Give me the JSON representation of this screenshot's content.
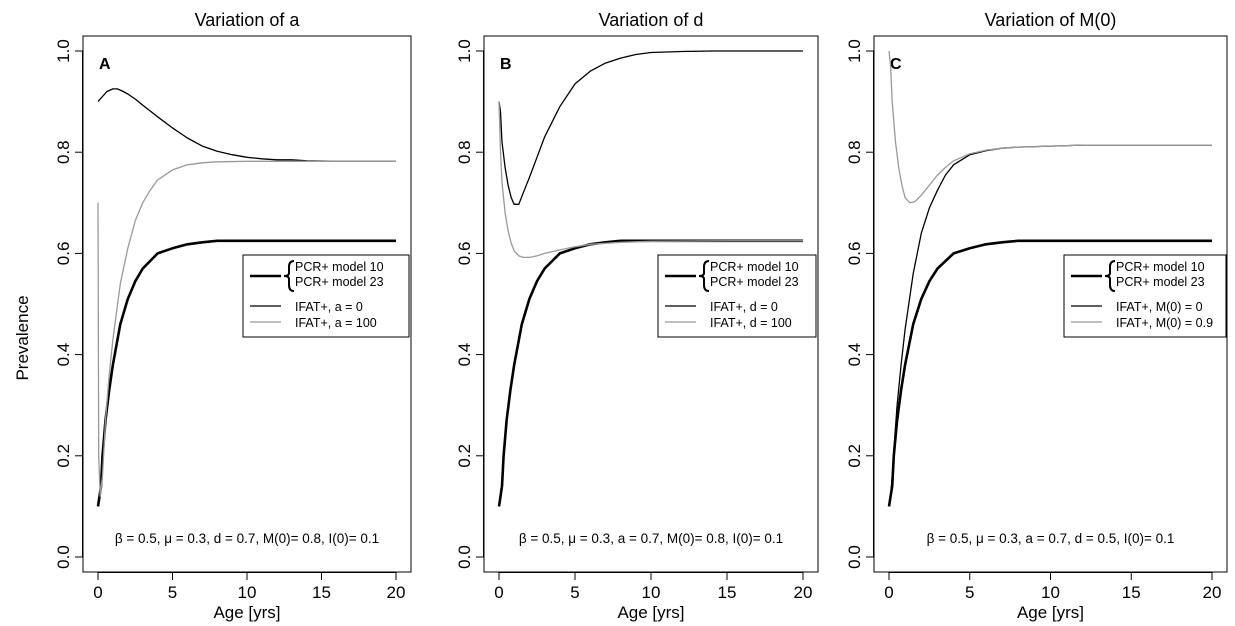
{
  "figure": {
    "ylabel": "Prevalence"
  },
  "chart_data": [
    {
      "type": "line",
      "title": "Variation of a",
      "panel_label": "A",
      "xlabel": "Age [yrs]",
      "ylabel": "Prevalence",
      "xlim": [
        0,
        20
      ],
      "ylim": [
        0,
        1
      ],
      "x_ticks": [
        "0",
        "5",
        "10",
        "15",
        "20"
      ],
      "y_ticks": [
        "0.0",
        "0.2",
        "0.4",
        "0.6",
        "0.8",
        "1.0"
      ],
      "grid": false,
      "legend_position": "right",
      "legend": {
        "brace_entries": [
          "PCR+ model 10",
          "PCR+ model 23"
        ],
        "entries": [
          {
            "label": "IFAT+, a = 0",
            "color": "#000000"
          },
          {
            "label": "IFAT+, a = 100",
            "color": "#999999"
          }
        ]
      },
      "annotation": "β = 0.5, μ = 0.3, d = 0.7, M(0)= 0.8, I(0)= 0.1",
      "series": [
        {
          "name": "PCR+ model 10",
          "color": "#000000",
          "width": "thick",
          "x": [
            0,
            0.1,
            0.2,
            0.3,
            0.5,
            0.75,
            1,
            1.5,
            2,
            2.5,
            3,
            3.5,
            4,
            5,
            6,
            7,
            8,
            10,
            12,
            15,
            20
          ],
          "y": [
            0.1,
            0.12,
            0.14,
            0.2,
            0.27,
            0.33,
            0.38,
            0.46,
            0.51,
            0.545,
            0.57,
            0.585,
            0.6,
            0.61,
            0.618,
            0.622,
            0.625,
            0.625,
            0.625,
            0.625,
            0.625
          ]
        },
        {
          "name": "IFAT+, a = 0",
          "color": "#000000",
          "width": "thin",
          "x": [
            0,
            0.3,
            0.6,
            1,
            1.3,
            1.7,
            2,
            2.5,
            3,
            4,
            5,
            6,
            7,
            8,
            9,
            10,
            11,
            12,
            13,
            14,
            16,
            18,
            20
          ],
          "y": [
            0.9,
            0.91,
            0.92,
            0.925,
            0.925,
            0.92,
            0.915,
            0.905,
            0.893,
            0.87,
            0.848,
            0.828,
            0.812,
            0.802,
            0.795,
            0.79,
            0.787,
            0.785,
            0.785,
            0.783,
            0.782,
            0.782,
            0.782
          ]
        },
        {
          "name": "IFAT+, a = 100",
          "color": "#999999",
          "width": "thin",
          "x": [
            0,
            0.05,
            0.15,
            0.3,
            0.5,
            0.75,
            1,
            1.5,
            2,
            2.5,
            3,
            3.5,
            4,
            5,
            6,
            7,
            8,
            10,
            12,
            15,
            20
          ],
          "y": [
            0.7,
            0.2,
            0.12,
            0.16,
            0.27,
            0.36,
            0.43,
            0.54,
            0.61,
            0.665,
            0.7,
            0.725,
            0.745,
            0.765,
            0.775,
            0.779,
            0.781,
            0.782,
            0.782,
            0.782,
            0.782
          ]
        }
      ]
    },
    {
      "type": "line",
      "title": "Variation of d",
      "panel_label": "B",
      "xlabel": "Age [yrs]",
      "ylabel": "",
      "xlim": [
        0,
        20
      ],
      "ylim": [
        0,
        1
      ],
      "x_ticks": [
        "0",
        "5",
        "10",
        "15",
        "20"
      ],
      "y_ticks": [
        "0.0",
        "0.2",
        "0.4",
        "0.6",
        "0.8",
        "1.0"
      ],
      "grid": false,
      "legend_position": "right",
      "legend": {
        "brace_entries": [
          "PCR+ model 10",
          "PCR+ model 23"
        ],
        "entries": [
          {
            "label": "IFAT+, d = 0",
            "color": "#000000"
          },
          {
            "label": "IFAT+, d = 100",
            "color": "#999999"
          }
        ]
      },
      "annotation": "β = 0.5, μ = 0.3, a = 0.7, M(0)= 0.8, I(0)= 0.1",
      "series": [
        {
          "name": "PCR+ model 10",
          "color": "#000000",
          "width": "thick",
          "x": [
            0,
            0.1,
            0.2,
            0.3,
            0.5,
            0.75,
            1,
            1.5,
            2,
            2.5,
            3,
            3.5,
            4,
            5,
            6,
            7,
            8,
            10,
            12,
            15,
            20
          ],
          "y": [
            0.1,
            0.12,
            0.14,
            0.2,
            0.27,
            0.33,
            0.38,
            0.46,
            0.51,
            0.545,
            0.57,
            0.585,
            0.6,
            0.61,
            0.618,
            0.622,
            0.625,
            0.625,
            0.625,
            0.625,
            0.625
          ]
        },
        {
          "name": "IFAT+, d = 0",
          "color": "#000000",
          "width": "thin",
          "x": [
            0,
            0.1,
            0.2,
            0.4,
            0.6,
            0.8,
            1,
            1.3,
            1.6,
            2,
            2.5,
            3,
            4,
            5,
            6,
            7,
            8,
            9,
            10,
            12,
            14,
            20
          ],
          "y": [
            0.9,
            0.88,
            0.82,
            0.77,
            0.735,
            0.71,
            0.697,
            0.697,
            0.72,
            0.75,
            0.79,
            0.83,
            0.89,
            0.935,
            0.96,
            0.976,
            0.986,
            0.993,
            0.997,
            0.999,
            1.0,
            1.0
          ]
        },
        {
          "name": "IFAT+, d = 100",
          "color": "#999999",
          "width": "thin",
          "x": [
            0,
            0.1,
            0.2,
            0.4,
            0.6,
            0.8,
            1,
            1.3,
            1.6,
            2,
            2.5,
            3,
            4,
            5,
            6,
            8,
            10,
            15,
            20
          ],
          "y": [
            0.9,
            0.8,
            0.74,
            0.68,
            0.645,
            0.62,
            0.605,
            0.595,
            0.592,
            0.592,
            0.595,
            0.6,
            0.607,
            0.613,
            0.618,
            0.622,
            0.624,
            0.625,
            0.625
          ]
        }
      ]
    },
    {
      "type": "line",
      "title": "Variation of M(0)",
      "panel_label": "C",
      "xlabel": "Age [yrs]",
      "ylabel": "",
      "xlim": [
        0,
        20
      ],
      "ylim": [
        0,
        1
      ],
      "x_ticks": [
        "0",
        "5",
        "10",
        "15",
        "20"
      ],
      "y_ticks": [
        "0.0",
        "0.2",
        "0.4",
        "0.6",
        "0.8",
        "1.0"
      ],
      "grid": false,
      "legend_position": "right",
      "legend": {
        "brace_entries": [
          "PCR+ model 10",
          "PCR+ model 23"
        ],
        "entries": [
          {
            "label": "IFAT+, M(0) = 0",
            "color": "#000000"
          },
          {
            "label": "IFAT+, M(0) = 0.9",
            "color": "#999999"
          }
        ]
      },
      "annotation": "β = 0.5, μ = 0.3, a = 0.7, d = 0.5, I(0)= 0.1",
      "series": [
        {
          "name": "PCR+ model 10",
          "color": "#000000",
          "width": "thick",
          "x": [
            0,
            0.1,
            0.2,
            0.3,
            0.5,
            0.75,
            1,
            1.5,
            2,
            2.5,
            3,
            3.5,
            4,
            5,
            6,
            7,
            8,
            10,
            12,
            15,
            20
          ],
          "y": [
            0.1,
            0.12,
            0.14,
            0.2,
            0.27,
            0.33,
            0.38,
            0.46,
            0.51,
            0.545,
            0.57,
            0.585,
            0.6,
            0.61,
            0.618,
            0.622,
            0.625,
            0.625,
            0.625,
            0.625,
            0.625
          ]
        },
        {
          "name": "IFAT+, M(0) = 0",
          "color": "#000000",
          "width": "thin",
          "x": [
            0,
            0.1,
            0.2,
            0.3,
            0.5,
            0.75,
            1,
            1.5,
            2,
            2.5,
            3,
            3.5,
            4,
            5,
            6,
            7,
            8,
            10,
            12,
            15,
            20
          ],
          "y": [
            0.1,
            0.12,
            0.16,
            0.21,
            0.3,
            0.38,
            0.45,
            0.56,
            0.64,
            0.69,
            0.725,
            0.755,
            0.775,
            0.795,
            0.803,
            0.808,
            0.81,
            0.812,
            0.814,
            0.814,
            0.814
          ]
        },
        {
          "name": "IFAT+, M(0) = 0.9",
          "color": "#999999",
          "width": "thin",
          "x": [
            0,
            0.1,
            0.2,
            0.4,
            0.6,
            0.8,
            1,
            1.3,
            1.6,
            2,
            2.5,
            3,
            3.5,
            4,
            4.5,
            5,
            6,
            7,
            8,
            10,
            12,
            15,
            20
          ],
          "y": [
            1.0,
            0.97,
            0.9,
            0.82,
            0.77,
            0.735,
            0.71,
            0.7,
            0.702,
            0.715,
            0.735,
            0.755,
            0.77,
            0.783,
            0.79,
            0.797,
            0.804,
            0.808,
            0.81,
            0.812,
            0.814,
            0.814,
            0.814
          ]
        }
      ]
    }
  ]
}
